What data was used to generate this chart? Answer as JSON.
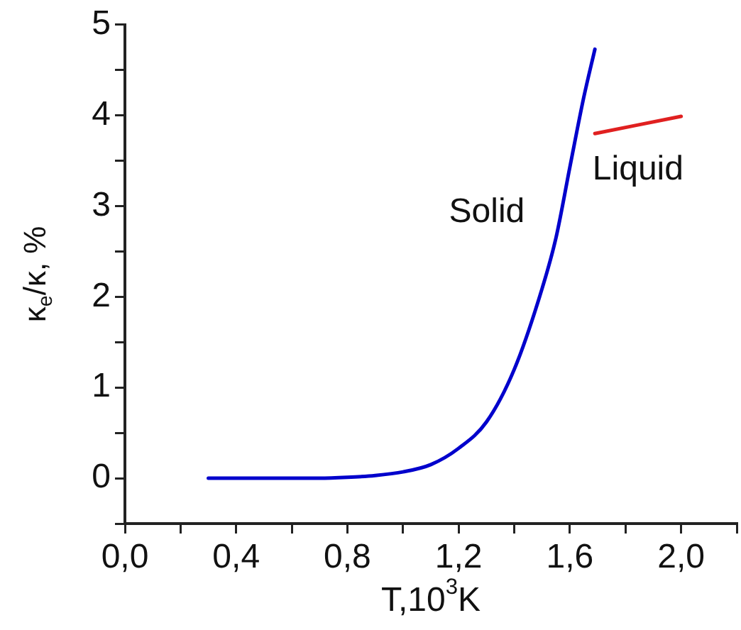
{
  "chart_data": {
    "type": "line",
    "xlabel": "T,10$^{3}$K",
    "ylabel": "κ$_{e}$/κ, %",
    "xlim": [
      0,
      2.2
    ],
    "ylim": [
      -0.5,
      5
    ],
    "xticks": [
      {
        "value": 0,
        "label": "0,0"
      },
      {
        "value": 0.2,
        "label": null
      },
      {
        "value": 0.4,
        "label": "0,4"
      },
      {
        "value": 0.6,
        "label": null
      },
      {
        "value": 0.8,
        "label": "0,8"
      },
      {
        "value": 1.0,
        "label": null
      },
      {
        "value": 1.2,
        "label": "1,2"
      },
      {
        "value": 1.4,
        "label": null
      },
      {
        "value": 1.6,
        "label": "1,6"
      },
      {
        "value": 1.8,
        "label": null
      },
      {
        "value": 2.0,
        "label": "2,0"
      },
      {
        "value": 2.2,
        "label": null
      }
    ],
    "yticks": [
      {
        "value": -0.5,
        "label": null
      },
      0,
      {
        "value": 0.5,
        "label": null
      },
      1,
      {
        "value": 1.5,
        "label": null
      },
      2,
      {
        "value": 2.5,
        "label": null
      },
      3,
      {
        "value": 3.5,
        "label": null
      },
      4,
      {
        "value": 4.5,
        "label": null
      },
      5
    ],
    "grid": false,
    "legend": false,
    "marker": "none",
    "line_style": "solid",
    "series": [
      {
        "name": "Solid",
        "color": "#0000cc",
        "x": [
          0.3,
          0.5,
          0.7,
          0.8,
          0.9,
          1.0,
          1.1,
          1.2,
          1.3,
          1.4,
          1.5,
          1.55,
          1.6,
          1.65,
          1.69
        ],
        "values": [
          0,
          0,
          0,
          0.01,
          0.03,
          0.07,
          0.15,
          0.33,
          0.62,
          1.2,
          2.09,
          2.65,
          3.43,
          4.2,
          4.73
        ]
      },
      {
        "name": "Liquid",
        "color": "#e02020",
        "x": [
          1.69,
          2.0
        ],
        "values": [
          3.8,
          3.99
        ]
      }
    ]
  }
}
